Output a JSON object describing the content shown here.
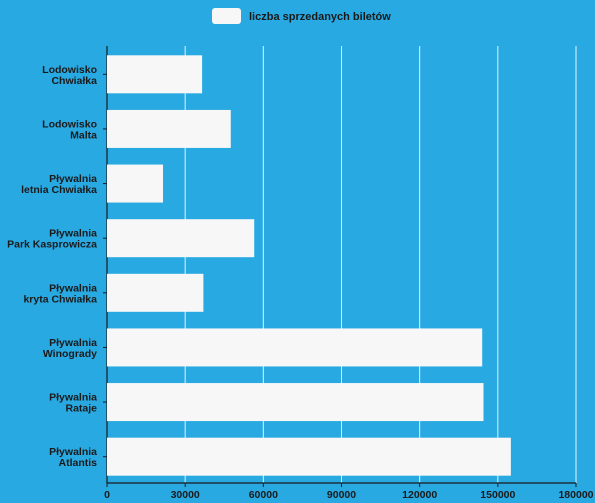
{
  "chart_data": {
    "type": "bar",
    "orientation": "horizontal",
    "legend": {
      "label": "liczba sprzedanych biletów",
      "placement": "top-center"
    },
    "categories": [
      "Lodowisko\nChwiałka",
      "Lodowisko\nMalta",
      "Pływalnia\nletnia Chwiałka",
      "Pływalnia\nPark Kasprowicza",
      "Pływalnia\nkryta Chwiałka",
      "Pływalnia\nWinogrady",
      "Pływalnia\nRataje",
      "Pływalnia\nAtlantis"
    ],
    "series": [
      {
        "name": "liczba sprzedanych biletów",
        "values": [
          36500,
          47500,
          21500,
          56500,
          37000,
          144000,
          144500,
          155000
        ]
      }
    ],
    "xlim": [
      0,
      180000
    ],
    "xticks": [
      "0",
      "30000",
      "60000",
      "90000",
      "120000",
      "150000",
      "180000"
    ],
    "grid": true,
    "colors": {
      "background": "#29a9e1",
      "bar": "#f7f7f7",
      "grid": "#ffffff",
      "text": "#1a1a1a"
    }
  }
}
